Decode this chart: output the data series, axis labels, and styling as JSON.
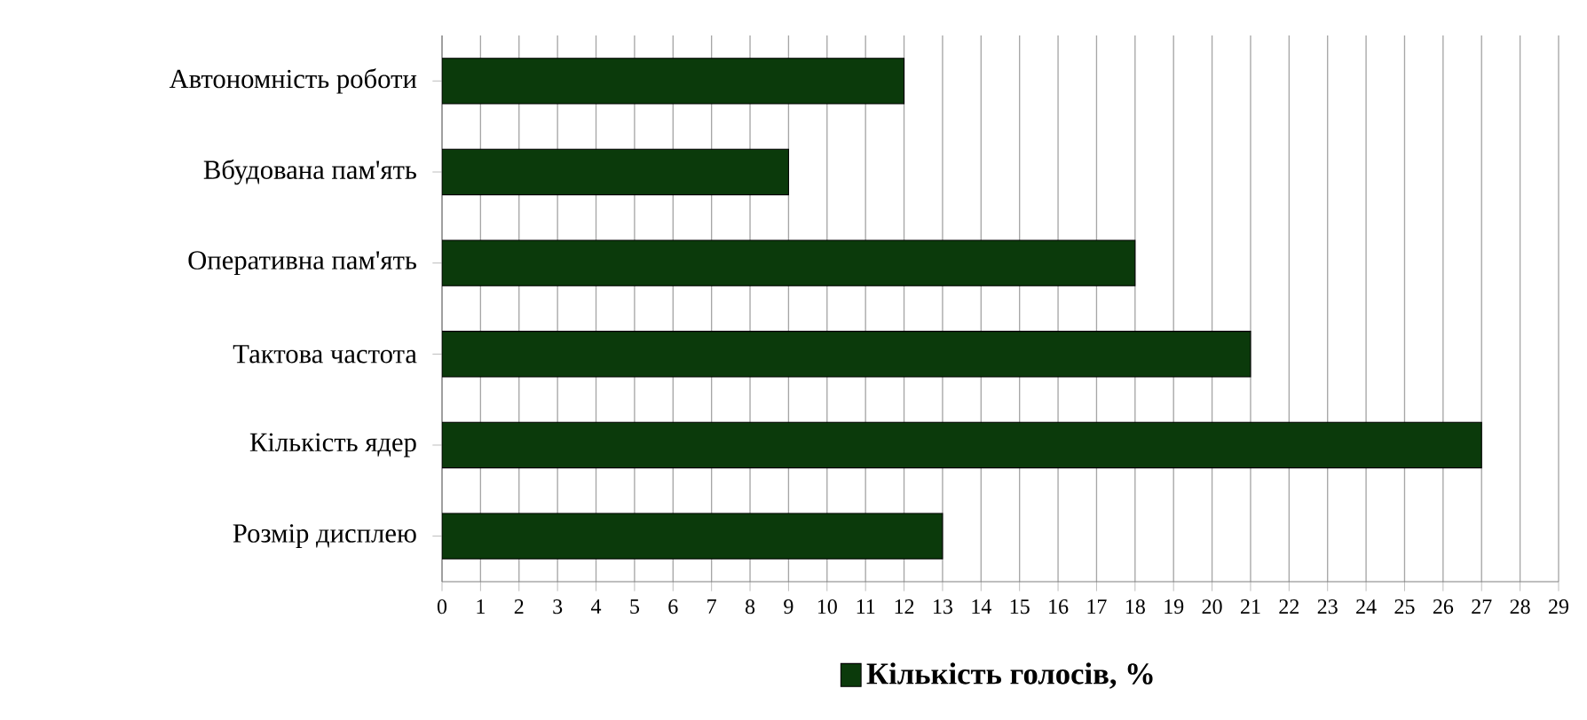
{
  "chart_data": {
    "type": "bar",
    "orientation": "horizontal",
    "categories": [
      "Автономність роботи",
      "Вбудована пам'ять",
      "Оперативна пам'ять",
      "Тактова частота",
      "Кількість ядер",
      "Розмір дисплею"
    ],
    "series": [
      {
        "name": "Кількість голосів, %",
        "color": "#0b3a0b",
        "values": [
          12,
          9,
          18,
          21,
          27,
          13
        ]
      }
    ],
    "xlim": [
      0,
      29
    ],
    "xticks": [
      0,
      1,
      2,
      3,
      4,
      5,
      6,
      7,
      8,
      9,
      10,
      11,
      12,
      13,
      14,
      15,
      16,
      17,
      18,
      19,
      20,
      21,
      22,
      23,
      24,
      25,
      26,
      27,
      28,
      29
    ],
    "grid": "x",
    "legend": "bottom"
  }
}
